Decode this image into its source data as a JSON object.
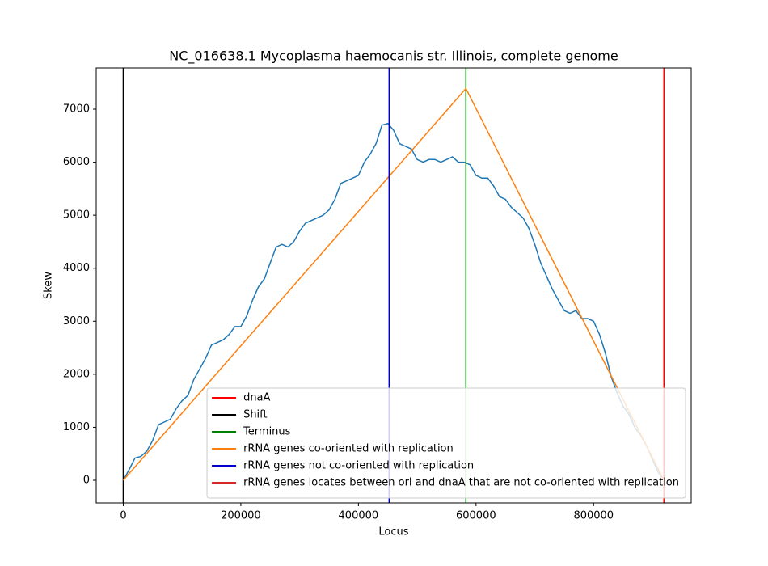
{
  "chart_data": {
    "type": "line",
    "title": "NC_016638.1 Mycoplasma haemocanis str. Illinois, complete genome",
    "xlabel": "Locus",
    "ylabel": "Skew",
    "xlim": [
      -46000,
      966000
    ],
    "ylim": [
      -427,
      7778
    ],
    "xticks": [
      0,
      200000,
      400000,
      600000,
      800000
    ],
    "yticks": [
      0,
      1000,
      2000,
      3000,
      4000,
      5000,
      6000,
      7000
    ],
    "grid": false,
    "legend": "lower right",
    "series": [
      {
        "name": "dnaA",
        "color": "#ff0000",
        "vlines": [
          919600
        ]
      },
      {
        "name": "Shift",
        "color": "#000000",
        "vlines": [
          0
        ]
      },
      {
        "name": "Terminus",
        "color": "#008000",
        "vlines": [
          582800
        ]
      },
      {
        "name": "rRNA genes co-oriented with replication",
        "color": "#ff7f0e",
        "x": [
          0,
          582800,
          919600
        ],
        "values": [
          0,
          7390,
          0
        ]
      },
      {
        "name": "rRNA genes not co-oriented with replication",
        "color": "#0000cd",
        "vlines": [
          452200
        ]
      },
      {
        "name": "rRNA genes locates between ori and dnaA that are not co-oriented with replication",
        "color": "#d62728",
        "vlines": []
      },
      {
        "color": "#1f77b4",
        "x": [
          0,
          10000,
          20000,
          30000,
          40000,
          50000,
          60000,
          70000,
          80000,
          90000,
          100000,
          110000,
          120000,
          130000,
          140000,
          150000,
          160000,
          170000,
          180000,
          190000,
          200000,
          210000,
          220000,
          230000,
          240000,
          250000,
          260000,
          270000,
          280000,
          290000,
          300000,
          310000,
          320000,
          330000,
          340000,
          350000,
          360000,
          370000,
          380000,
          390000,
          400000,
          410000,
          420000,
          430000,
          440000,
          450000,
          460000,
          470000,
          480000,
          490000,
          500000,
          510000,
          520000,
          530000,
          540000,
          550000,
          560000,
          570000,
          580000,
          590000,
          600000,
          610000,
          620000,
          630000,
          640000,
          650000,
          660000,
          670000,
          680000,
          690000,
          700000,
          710000,
          720000,
          730000,
          740000,
          750000,
          760000,
          770000,
          780000,
          790000,
          800000,
          810000,
          820000,
          830000,
          840000,
          850000,
          860000,
          870000,
          880000,
          890000,
          900000,
          910000,
          919600
        ],
        "values": [
          0,
          200,
          420,
          450,
          550,
          750,
          1050,
          1100,
          1150,
          1350,
          1500,
          1600,
          1900,
          2100,
          2300,
          2550,
          2600,
          2650,
          2750,
          2900,
          2900,
          3100,
          3400,
          3650,
          3800,
          4100,
          4400,
          4450,
          4400,
          4500,
          4700,
          4850,
          4900,
          4950,
          5000,
          5100,
          5300,
          5600,
          5650,
          5700,
          5750,
          6000,
          6150,
          6350,
          6700,
          6730,
          6600,
          6350,
          6300,
          6250,
          6050,
          6000,
          6050,
          6050,
          6000,
          6050,
          6100,
          6000,
          6000,
          5950,
          5750,
          5700,
          5700,
          5550,
          5350,
          5300,
          5150,
          5050,
          4950,
          4750,
          4450,
          4100,
          3850,
          3600,
          3400,
          3200,
          3150,
          3200,
          3050,
          3050,
          3000,
          2750,
          2400,
          1950,
          1650,
          1400,
          1250,
          1000,
          850,
          650,
          400,
          150,
          0
        ]
      }
    ]
  }
}
